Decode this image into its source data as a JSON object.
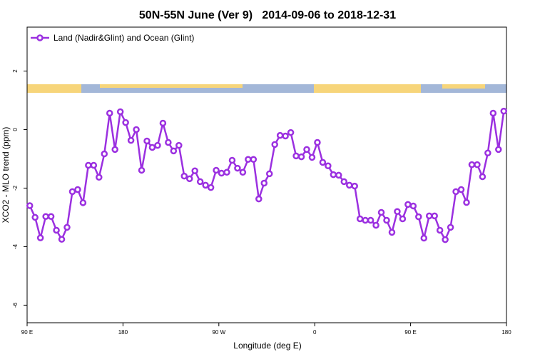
{
  "chart_data": {
    "type": "line",
    "title": "50N-55N June (Ver 9)   2014-09-06 to 2018-12-31",
    "xlabel": "Longitude (deg E)",
    "ylabel": "XCO2 - MLO trend (ppm)",
    "xlim": [
      90,
      540
    ],
    "ylim": [
      -6.6,
      3.5
    ],
    "xticks": [
      {
        "value": 90,
        "label": "90 E"
      },
      180,
      {
        "value": 270,
        "label": "90 W"
      },
      {
        "value": 360,
        "label": "0"
      },
      {
        "value": 450,
        "label": "90 E"
      },
      {
        "value": 540,
        "label": "180"
      }
    ],
    "yticks": [
      -6,
      -4,
      -2,
      0,
      2
    ],
    "x": [
      92.5,
      97.5,
      102.5,
      107.5,
      112.5,
      117.5,
      122.5,
      127.5,
      132.5,
      137.5,
      142.5,
      147.5,
      152.5,
      157.5,
      162.5,
      167.5,
      172.5,
      177.5,
      182.5,
      187.5,
      192.5,
      197.5,
      202.5,
      207.5,
      212.5,
      217.5,
      222.5,
      227.5,
      232.5,
      237.5,
      242.5,
      247.5,
      252.5,
      257.5,
      262.5,
      267.5,
      272.5,
      277.5,
      282.5,
      287.5,
      292.5,
      297.5,
      302.5,
      307.5,
      312.5,
      317.5,
      322.5,
      327.5,
      332.5,
      337.5,
      342.5,
      347.5,
      352.5,
      357.5,
      362.5,
      367.5,
      372.5,
      377.5,
      382.5,
      387.5,
      392.5,
      397.5,
      402.5,
      407.5,
      412.5,
      417.5,
      422.5,
      427.5,
      432.5,
      437.5,
      442.5,
      447.5,
      452.5,
      457.5,
      462.5,
      467.5,
      472.5,
      477.5,
      482.5,
      487.5,
      492.5,
      497.5,
      502.5,
      507.5,
      512.5,
      517.5,
      522.5,
      527.5,
      532.5,
      537.5
    ],
    "series": [
      {
        "name": "Land (Nadir&Glint) and Ocean (Glint)",
        "color": "#9b30e0",
        "values": [
          -2.6,
          -3.0,
          -3.7,
          -2.97,
          -2.97,
          -3.44,
          -3.75,
          -3.34,
          -2.12,
          -2.05,
          -2.5,
          -1.22,
          -1.22,
          -1.63,
          -0.83,
          0.56,
          -0.68,
          0.61,
          0.24,
          -0.37,
          0,
          -1.39,
          -0.39,
          -0.61,
          -0.54,
          0.22,
          -0.44,
          -0.73,
          -0.54,
          -1.59,
          -1.68,
          -1.41,
          -1.78,
          -1.9,
          -1.98,
          -1.39,
          -1.49,
          -1.46,
          -1.05,
          -1.32,
          -1.46,
          -1.02,
          -1.02,
          -2.37,
          -1.83,
          -1.51,
          -0.51,
          -0.2,
          -0.22,
          -0.1,
          -0.9,
          -0.93,
          -0.68,
          -0.95,
          -0.44,
          -1.12,
          -1.24,
          -1.54,
          -1.56,
          -1.78,
          -1.9,
          -1.93,
          -3.05,
          -3.1,
          -3.1,
          -3.27,
          -2.83,
          -3.1,
          -3.51,
          -2.8,
          -3.05,
          -2.56,
          -2.61,
          -2.98,
          -3.71,
          -2.95,
          -2.95,
          -3.44,
          -3.76,
          -3.34,
          -2.12,
          -2.05,
          -2.49,
          -1.2,
          -1.2,
          -1.61,
          -0.8,
          0.56,
          -0.68,
          0.63
        ]
      }
    ]
  }
}
